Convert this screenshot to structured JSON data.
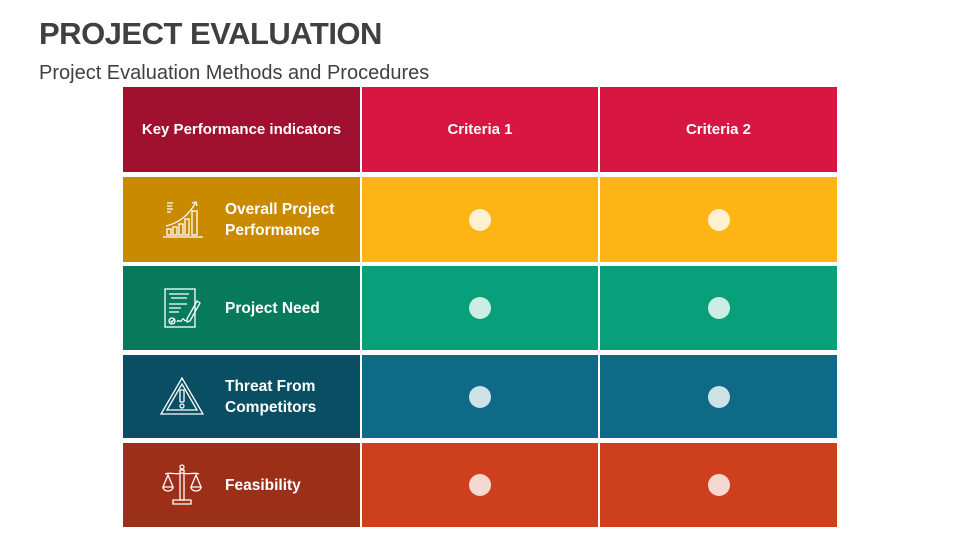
{
  "header": {
    "title": "PROJECT EVALUATION",
    "subtitle": "Project Evaluation Methods and Procedures"
  },
  "table": {
    "columns": [
      "Key Performance indicators",
      "Criteria 1",
      "Criteria 2"
    ],
    "header_colors": [
      "#A0102F",
      "#D81642",
      "#D81642"
    ],
    "rows": [
      {
        "label": "Overall Project Performance",
        "icon": "growth-chart-icon",
        "colors": [
          "#C98A00",
          "#FDB515"
        ],
        "criteria": [
          "marked",
          "marked"
        ]
      },
      {
        "label": "Project Need",
        "icon": "signed-document-icon",
        "colors": [
          "#067A5B",
          "#07A07A"
        ],
        "criteria": [
          "marked",
          "marked"
        ]
      },
      {
        "label": "Threat From Competitors",
        "icon": "warning-triangle-icon",
        "colors": [
          "#0A4E64",
          "#0E6A87"
        ],
        "criteria": [
          "marked",
          "marked"
        ]
      },
      {
        "label": "Feasibility",
        "icon": "balance-scale-icon",
        "colors": [
          "#9B2F18",
          "#CE401D"
        ],
        "criteria": [
          "marked",
          "marked"
        ]
      }
    ]
  }
}
